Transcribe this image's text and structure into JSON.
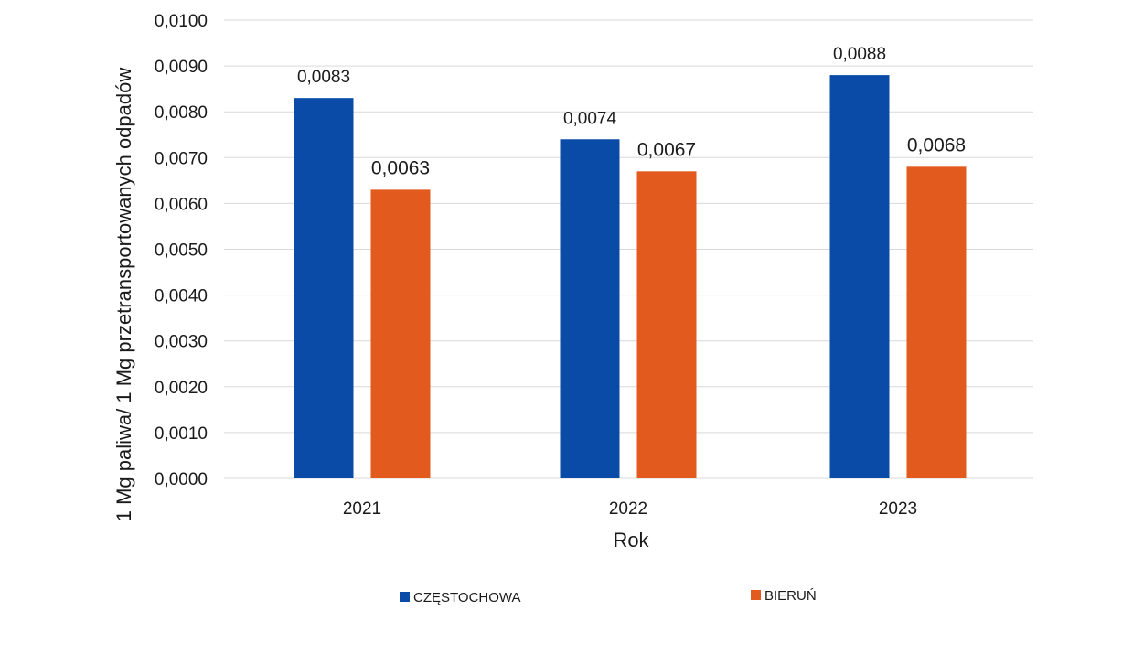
{
  "chart_data": {
    "type": "bar",
    "title": "",
    "xlabel": "Rok",
    "ylabel": "1 Mg paliwa/ 1 Mg  przetransportowanych odpadów",
    "categories": [
      "2021",
      "2022",
      "2023"
    ],
    "series": [
      {
        "name": "CZĘSTOCHOWA",
        "color": "#0a4ba8",
        "values": [
          0.0083,
          0.0074,
          0.0088
        ],
        "labels": [
          "0,0083",
          "0,0074",
          "0,0088"
        ]
      },
      {
        "name": "BIERUŃ",
        "color": "#e35a1e",
        "values": [
          0.0063,
          0.0067,
          0.0068
        ],
        "labels": [
          "0,0063",
          "0,0067",
          "0,0068"
        ]
      }
    ],
    "ylim": [
      0,
      0.01
    ],
    "yticks": [
      "0,0000",
      "0,0010",
      "0,0020",
      "0,0030",
      "0,0040",
      "0,0050",
      "0,0060",
      "0,0070",
      "0,0080",
      "0,0090",
      "0,0100"
    ],
    "grid": true,
    "legend_position": "bottom"
  }
}
